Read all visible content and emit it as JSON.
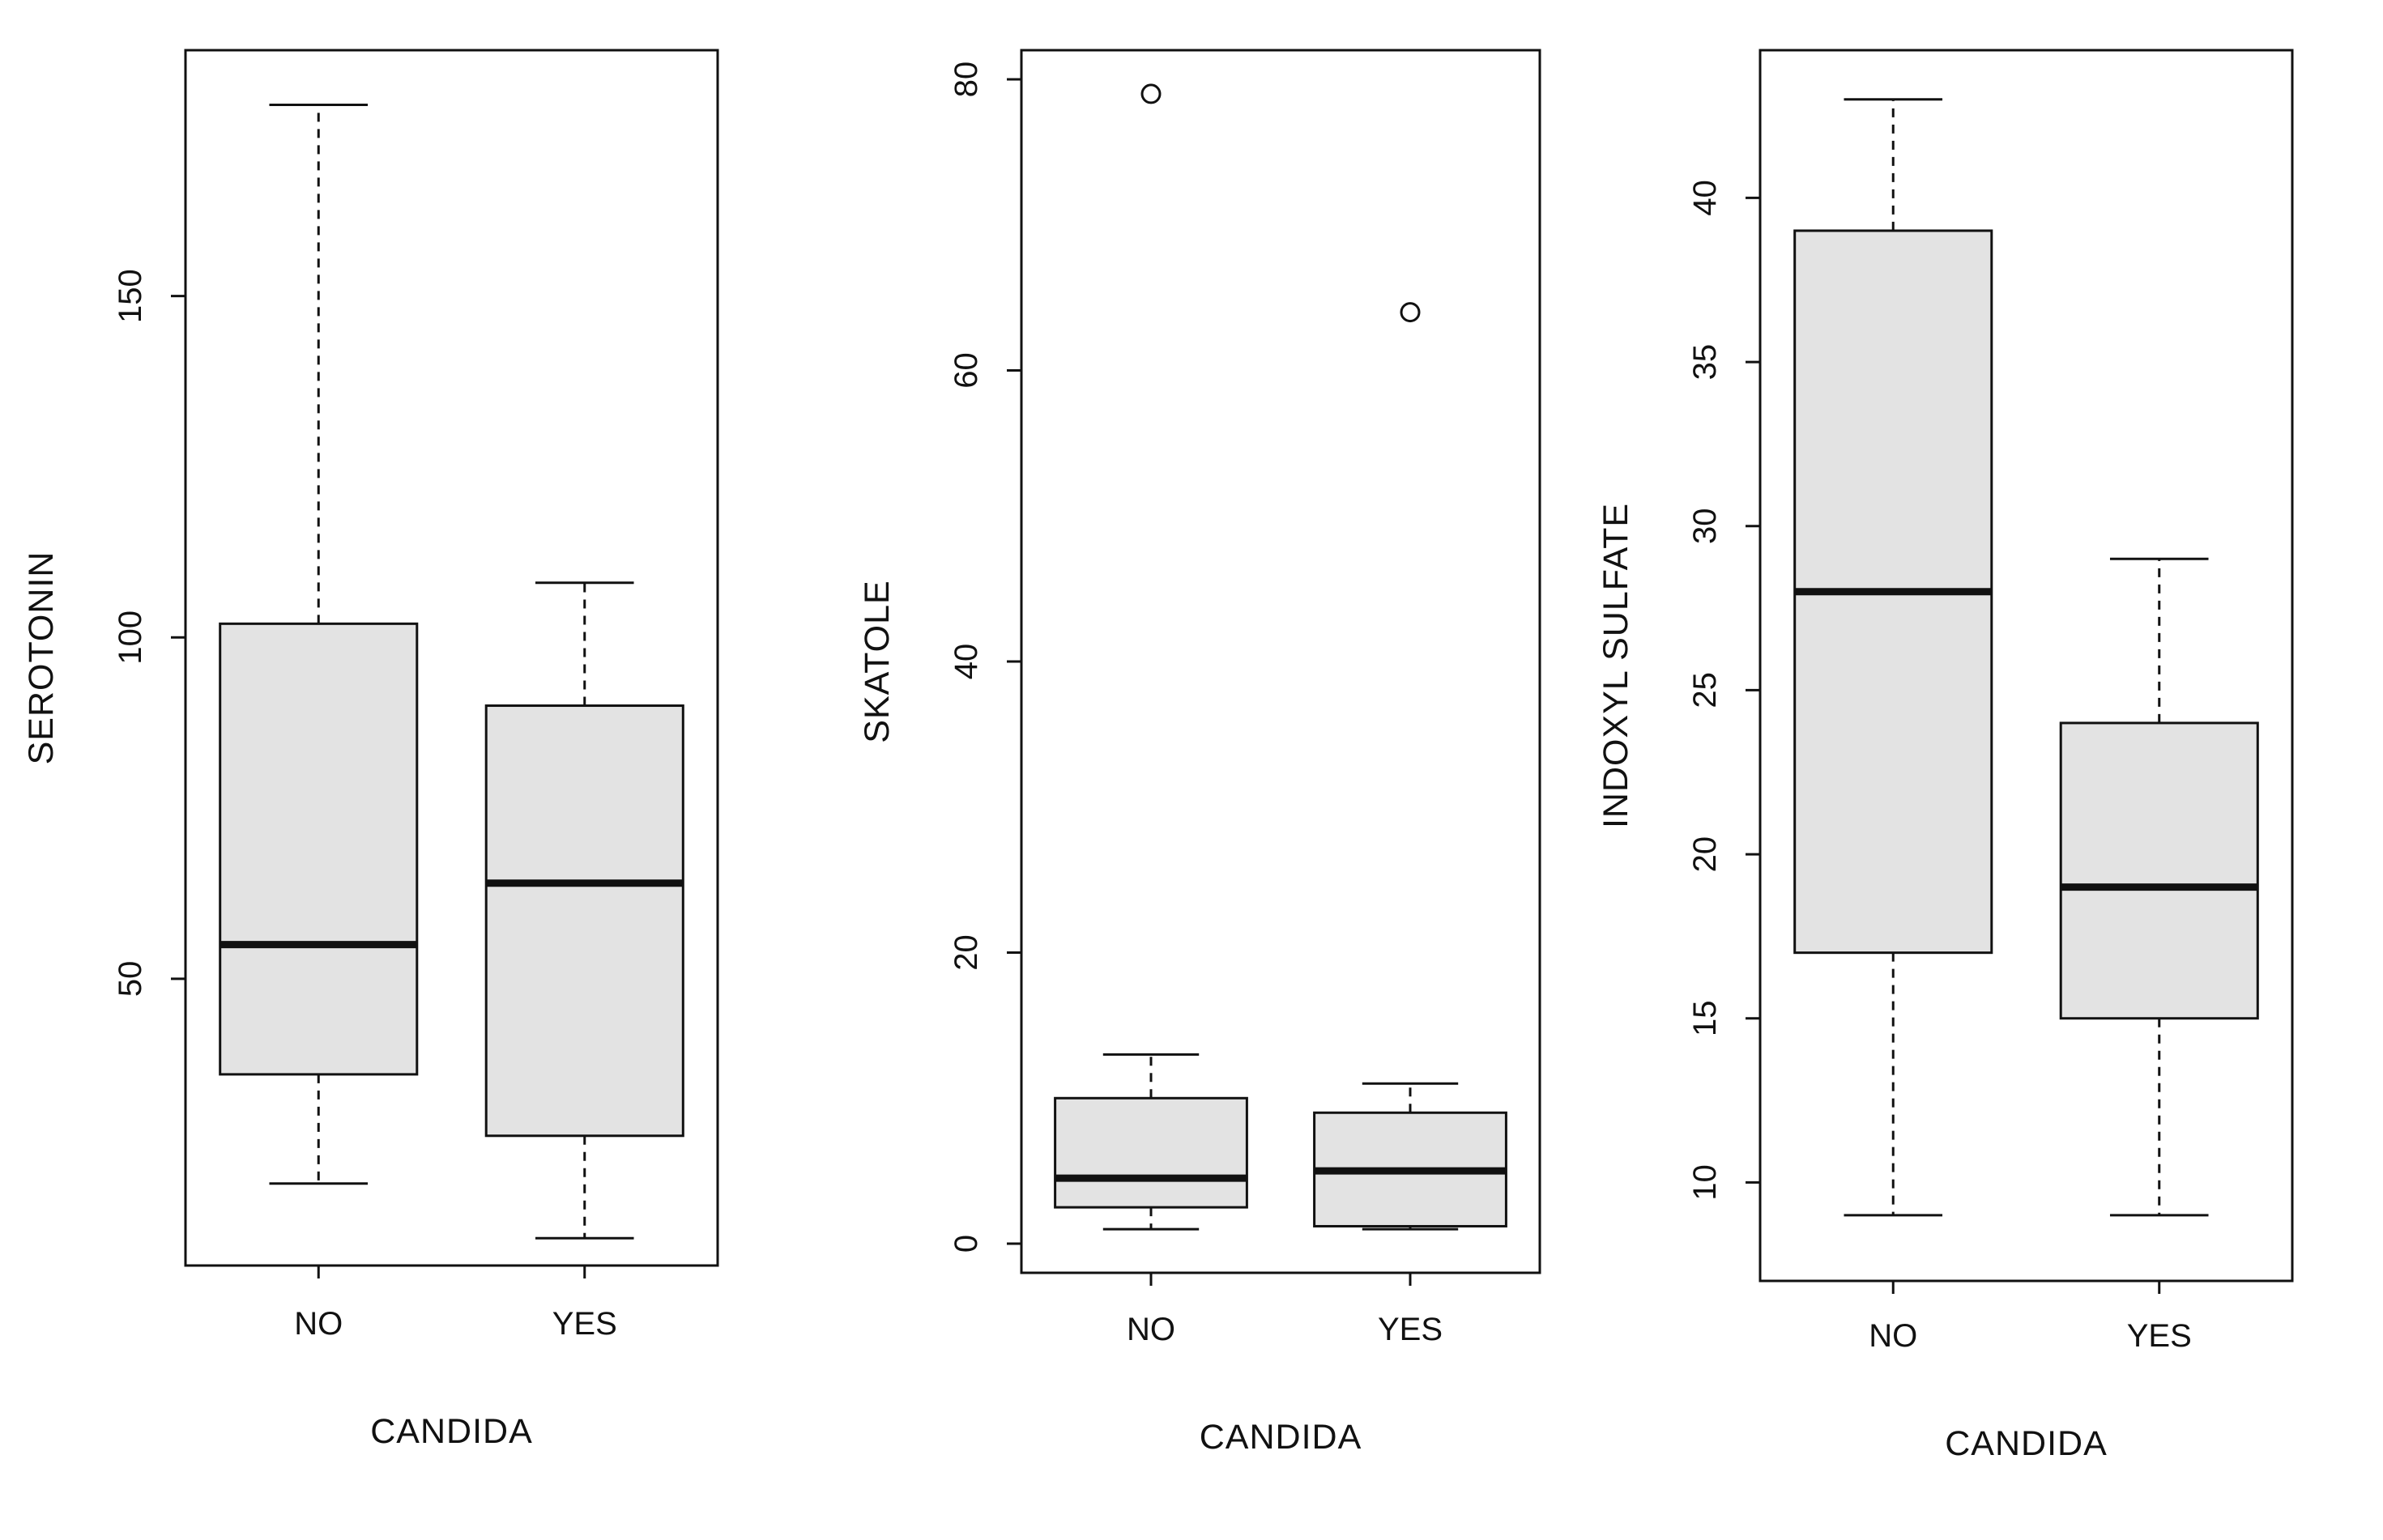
{
  "figure": {
    "background": "#ffffff",
    "description_labels": {
      "panel1_ylabel": "SEROTONIN",
      "panel2_ylabel": "SKATOLE",
      "panel3_ylabel": "INDOXYL SULFATE",
      "shared_xlabel": "CANDIDA"
    }
  },
  "colors": {
    "ink": "#111111",
    "box_fill": "#e3e3e3",
    "background": "#ffffff"
  },
  "chart_data": [
    {
      "type": "boxplot",
      "title": "",
      "ylabel": "SEROTONIN",
      "xlabel": "CANDIDA",
      "categories": [
        "NO",
        "YES"
      ],
      "yticks": [
        50,
        100,
        150
      ],
      "ylim": [
        8,
        186
      ],
      "grid": false,
      "legend": false,
      "series": [
        {
          "category": "NO",
          "whisker_low": 20,
          "q1": 36,
          "median": 55,
          "q3": 102,
          "whisker_high": 178,
          "outliers": []
        },
        {
          "category": "YES",
          "whisker_low": 12,
          "q1": 27,
          "median": 64,
          "q3": 90,
          "whisker_high": 108,
          "outliers": []
        }
      ]
    },
    {
      "type": "boxplot",
      "title": "",
      "ylabel": "SKATOLE",
      "xlabel": "CANDIDA",
      "categories": [
        "NO",
        "YES"
      ],
      "yticks": [
        0,
        20,
        40,
        60,
        80
      ],
      "ylim": [
        -2,
        82
      ],
      "grid": false,
      "legend": false,
      "series": [
        {
          "category": "NO",
          "whisker_low": 1,
          "q1": 2.5,
          "median": 4.5,
          "q3": 10,
          "whisker_high": 13,
          "outliers": [
            79
          ]
        },
        {
          "category": "YES",
          "whisker_low": 1,
          "q1": 1.2,
          "median": 5,
          "q3": 9,
          "whisker_high": 11,
          "outliers": [
            64
          ]
        }
      ]
    },
    {
      "type": "boxplot",
      "title": "",
      "ylabel": "INDOXYL SULFATE",
      "xlabel": "CANDIDA",
      "categories": [
        "NO",
        "YES"
      ],
      "yticks": [
        10,
        15,
        20,
        25,
        30,
        35,
        40
      ],
      "ylim": [
        7,
        44.5
      ],
      "grid": false,
      "legend": false,
      "series": [
        {
          "category": "NO",
          "whisker_low": 9,
          "q1": 17,
          "median": 28,
          "q3": 39,
          "whisker_high": 43,
          "outliers": []
        },
        {
          "category": "YES",
          "whisker_low": 9,
          "q1": 15,
          "median": 19,
          "q3": 24,
          "whisker_high": 29,
          "outliers": []
        }
      ]
    }
  ]
}
